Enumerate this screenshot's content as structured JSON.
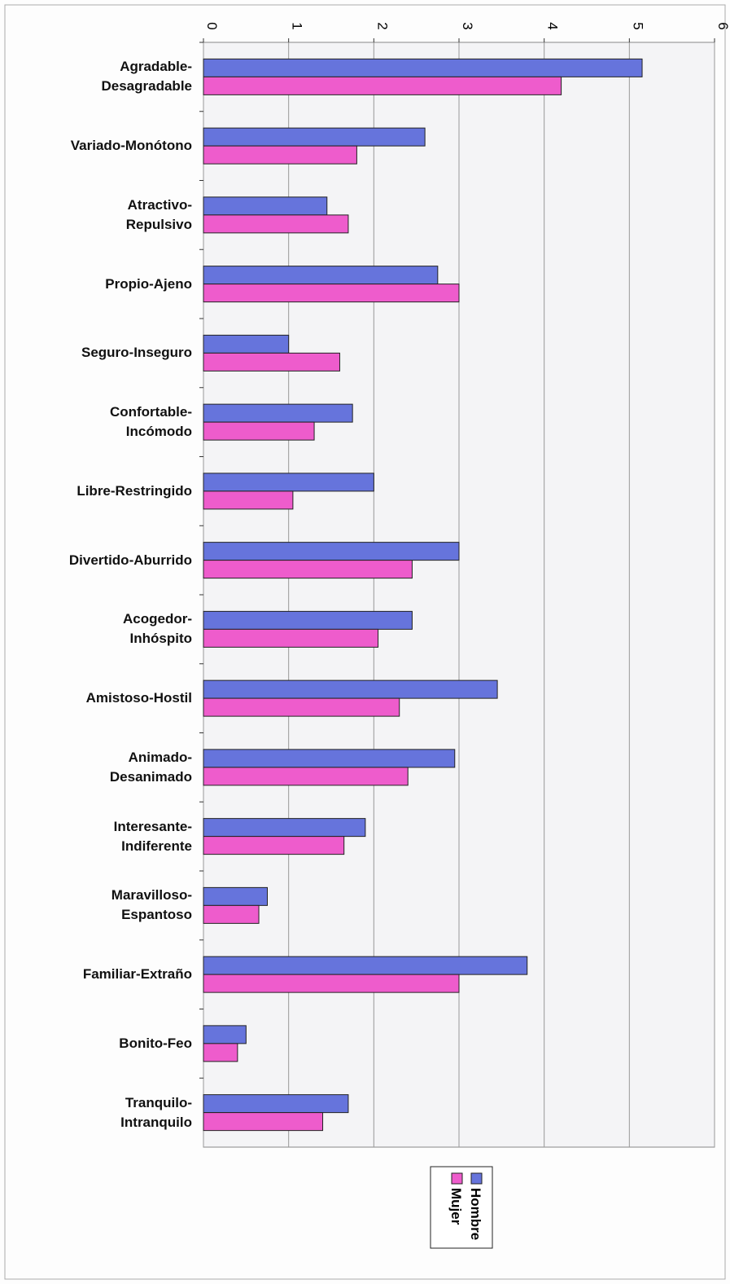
{
  "chart_data": {
    "type": "bar",
    "orientation": "horizontal",
    "categories": [
      "Agradable-\nDesagradable",
      "Variado-Monótono",
      "Atractivo-\nRepulsivo",
      "Propio-Ajeno",
      "Seguro-Inseguro",
      "Confortable-\nIncómodo",
      "Libre-Restringido",
      "Divertido-Aburrido",
      "Acogedor-\nInhóspito",
      "Amistoso-Hostil",
      "Animado-\nDesanimado",
      "Interesante-\nIndiferente",
      "Maravilloso-\nEspantoso",
      "Familiar-Extraño",
      "Bonito-Feo",
      "Tranquilo-\nIntranquilo"
    ],
    "series": [
      {
        "name": "Hombre",
        "color": "#6674dc",
        "values": [
          5.15,
          2.6,
          1.45,
          2.75,
          1.0,
          1.75,
          2.0,
          3.0,
          2.45,
          3.45,
          2.95,
          1.9,
          0.75,
          3.8,
          0.5,
          1.7
        ]
      },
      {
        "name": "Mujer",
        "color": "#ee5ccc",
        "values": [
          4.2,
          1.8,
          1.7,
          3.0,
          1.6,
          1.3,
          1.05,
          2.45,
          2.05,
          2.3,
          2.4,
          1.65,
          0.65,
          3.0,
          0.4,
          1.4
        ]
      }
    ],
    "xlim": [
      0,
      6
    ],
    "xticks": [
      0,
      1,
      2,
      3,
      4,
      5,
      6
    ],
    "grid": true,
    "legend": "bottom"
  }
}
